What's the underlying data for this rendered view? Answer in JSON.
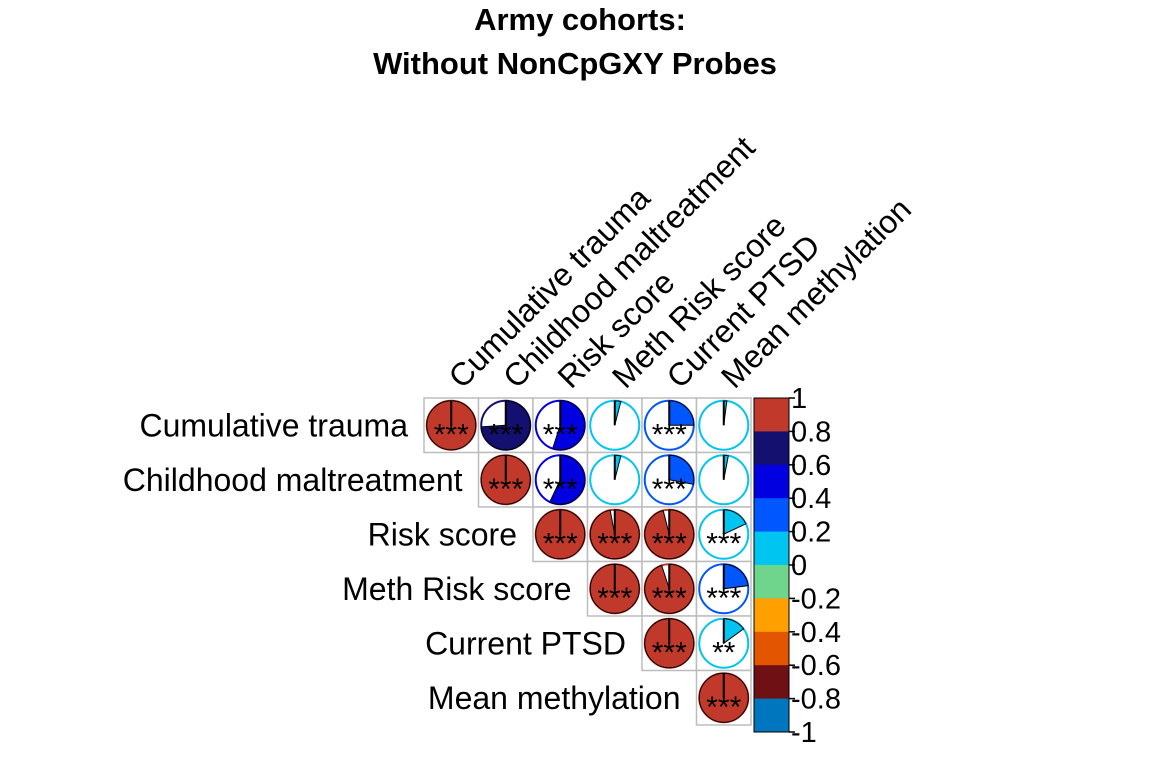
{
  "chart_data": {
    "type": "heatmap",
    "subtype": "correlation-pie-upper-triangle",
    "title_lines": [
      "Army cohorts:",
      "Without NonCpGXY Probes"
    ],
    "variables": [
      "Cumulative trauma",
      "Childhood maltreatment",
      "Risk score",
      "Meth Risk score",
      "Current PTSD",
      "Mean methylation"
    ],
    "cells": [
      {
        "row": 0,
        "col": 0,
        "r": 1.0,
        "sig": "***"
      },
      {
        "row": 0,
        "col": 1,
        "r": 0.74,
        "sig": "***"
      },
      {
        "row": 0,
        "col": 2,
        "r": 0.55,
        "sig": "***"
      },
      {
        "row": 0,
        "col": 3,
        "r": 0.04,
        "sig": ""
      },
      {
        "row": 0,
        "col": 4,
        "r": 0.25,
        "sig": "***"
      },
      {
        "row": 0,
        "col": 5,
        "r": 0.02,
        "sig": ""
      },
      {
        "row": 1,
        "col": 1,
        "r": 1.0,
        "sig": "***"
      },
      {
        "row": 1,
        "col": 2,
        "r": 0.57,
        "sig": "***"
      },
      {
        "row": 1,
        "col": 3,
        "r": 0.04,
        "sig": ""
      },
      {
        "row": 1,
        "col": 4,
        "r": 0.28,
        "sig": "***"
      },
      {
        "row": 1,
        "col": 5,
        "r": 0.03,
        "sig": ""
      },
      {
        "row": 2,
        "col": 2,
        "r": 1.0,
        "sig": "***"
      },
      {
        "row": 2,
        "col": 3,
        "r": 0.97,
        "sig": "***"
      },
      {
        "row": 2,
        "col": 4,
        "r": 0.96,
        "sig": "***"
      },
      {
        "row": 2,
        "col": 5,
        "r": 0.18,
        "sig": "***"
      },
      {
        "row": 3,
        "col": 3,
        "r": 1.0,
        "sig": "***"
      },
      {
        "row": 3,
        "col": 4,
        "r": 0.95,
        "sig": "***"
      },
      {
        "row": 3,
        "col": 5,
        "r": 0.23,
        "sig": "***"
      },
      {
        "row": 4,
        "col": 4,
        "r": 1.0,
        "sig": "***"
      },
      {
        "row": 4,
        "col": 5,
        "r": 0.15,
        "sig": "**"
      },
      {
        "row": 5,
        "col": 5,
        "r": 1.0,
        "sig": "***"
      }
    ],
    "colorbar": {
      "range": [
        -1,
        1
      ],
      "tick_labels": [
        "1",
        "0.8",
        "0.6",
        "0.4",
        "0.2",
        "0",
        "-0.2",
        "-0.4",
        "-0.6",
        "-0.8",
        "-1"
      ],
      "colors_top_to_bottom": [
        "#C0392B",
        "#141070",
        "#0000E0",
        "#0057FF",
        "#00C5F0",
        "#6FD48C",
        "#FF9F00",
        "#E45500",
        "#6F1015",
        "#0076BE"
      ]
    },
    "grid": true,
    "legend_placement": "right"
  }
}
